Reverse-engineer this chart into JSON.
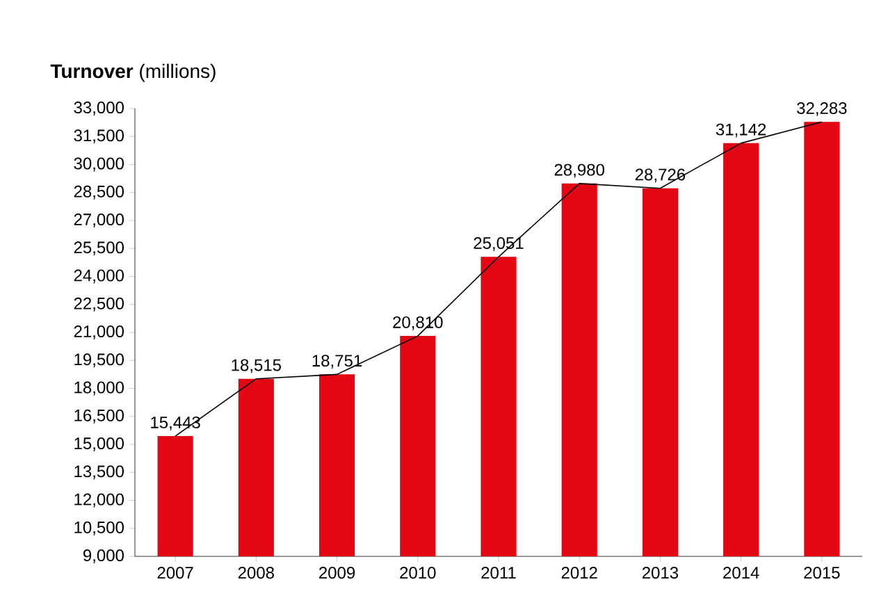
{
  "chart_data": {
    "type": "bar",
    "title": "**Turnover** (millions)",
    "categories": [
      "2007",
      "2008",
      "2009",
      "2010",
      "2011",
      "2012",
      "2013",
      "2014",
      "2015"
    ],
    "series": [
      {
        "type": "bar",
        "color": "#e30613",
        "values": [
          15443,
          18515,
          18751,
          20810,
          25051,
          28980,
          28726,
          31142,
          32283
        ],
        "value_labels": [
          "15,443",
          "18,515",
          "18,751",
          "20,810",
          "25,051",
          "28,980",
          "28,726",
          "31,142",
          "32,283"
        ]
      },
      {
        "type": "line",
        "color": "#000000",
        "values": [
          15443,
          18515,
          18751,
          20810,
          25051,
          28980,
          28726,
          31142,
          32283
        ]
      }
    ],
    "ylim": [
      9000,
      33000
    ],
    "yticks": [
      {
        "value": 9000,
        "label": "9,000"
      },
      {
        "value": 10500,
        "label": "10,500"
      },
      {
        "value": 12000,
        "label": "12,000"
      },
      {
        "value": 13500,
        "label": "13,500"
      },
      {
        "value": 15000,
        "label": "15,000"
      },
      {
        "value": 16500,
        "label": "16,500"
      },
      {
        "value": 18000,
        "label": "18,000"
      },
      {
        "value": 19500,
        "label": "19,500"
      },
      {
        "value": 21000,
        "label": "21,000"
      },
      {
        "value": 22500,
        "label": "22,500"
      },
      {
        "value": 24000,
        "label": "24,000"
      },
      {
        "value": 25500,
        "label": "25,500"
      },
      {
        "value": 27000,
        "label": "27,000"
      },
      {
        "value": 28500,
        "label": "28,500"
      },
      {
        "value": 30000,
        "label": "30,000"
      },
      {
        "value": 31500,
        "label": "31,500"
      },
      {
        "value": 33000,
        "label": "33,000"
      }
    ],
    "grid": false,
    "marker": "none"
  }
}
